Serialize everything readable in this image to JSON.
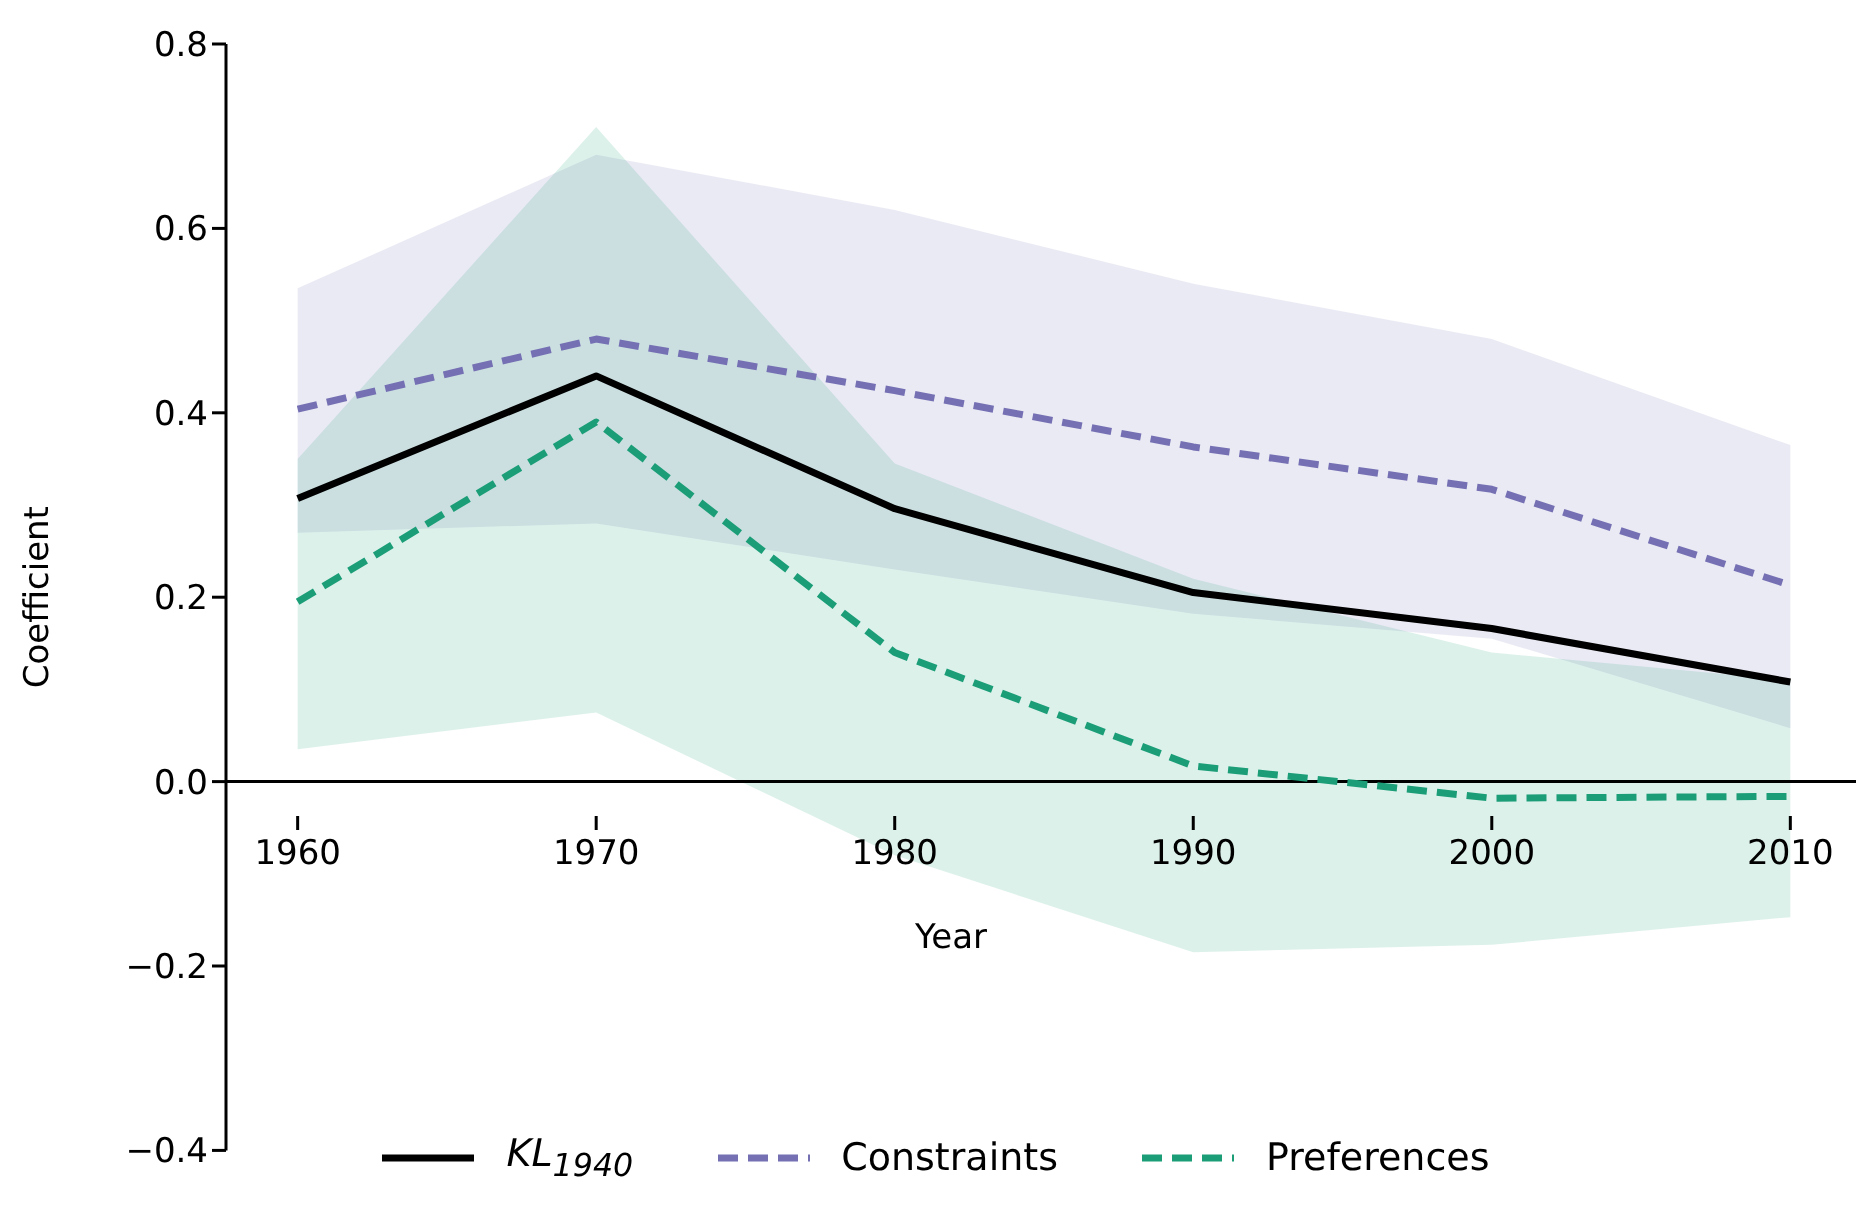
{
  "chart_data": {
    "type": "line",
    "xlabel": "Year",
    "ylabel": "Coefficient",
    "x": [
      1960,
      1970,
      1980,
      1990,
      2000,
      2010
    ],
    "xlim": [
      1957.6,
      2012.2
    ],
    "xticks": [
      1960,
      1970,
      1980,
      1990,
      2000,
      2010
    ],
    "ylim": [
      -0.4,
      0.8
    ],
    "yticks": [
      -0.4,
      -0.2,
      {
        "value": 0,
        "label": "0.0"
      },
      0.2,
      0.4,
      0.6,
      0.8
    ],
    "grid": false,
    "legend": "bottom",
    "marker": "none",
    "series": [
      {
        "name": "KL$_{1940}$",
        "color": "#000000",
        "line_style": "solid",
        "values": [
          0.307,
          0.44,
          0.296,
          0.205,
          0.166,
          0.108
        ]
      },
      {
        "name": "Constraints",
        "color": "#7570b3",
        "line_style": "dashed",
        "values": [
          0.404,
          0.48,
          0.424,
          0.363,
          0.317,
          0.213
        ],
        "lower": [
          0.27,
          0.28,
          0.23,
          0.182,
          0.155,
          0.058
        ],
        "upper": [
          0.535,
          0.68,
          0.62,
          0.54,
          0.48,
          0.365
        ]
      },
      {
        "name": "Preferences",
        "color": "#1b9e77",
        "line_style": "dashed",
        "values": [
          0.195,
          0.39,
          0.14,
          0.017,
          -0.018,
          -0.016
        ],
        "lower": [
          0.035,
          0.075,
          -0.08,
          -0.185,
          -0.177,
          -0.147
        ],
        "upper": [
          0.35,
          0.71,
          0.345,
          0.22,
          0.14,
          0.11
        ]
      }
    ]
  }
}
